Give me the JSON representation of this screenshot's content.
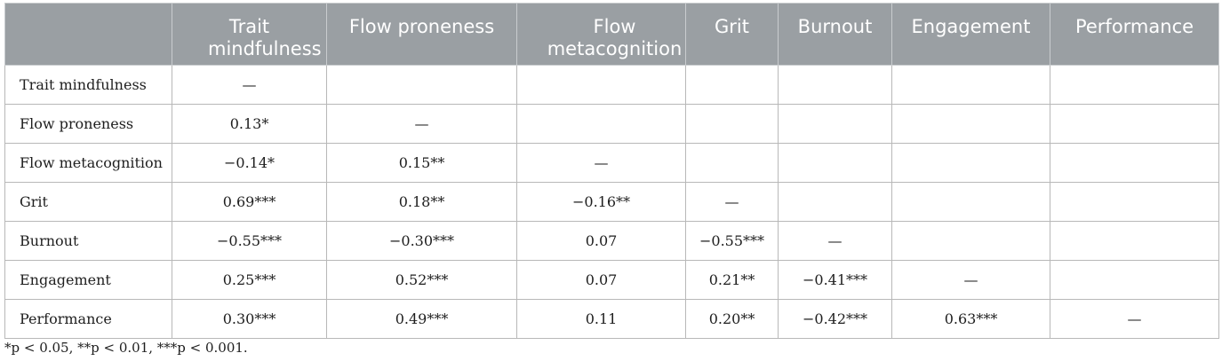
{
  "table": {
    "headers": [
      "",
      "Trait mindfulness",
      "Flow proneness",
      "Flow metacognition",
      "Grit",
      "Burnout",
      "Engagement",
      "Performance"
    ],
    "rows": [
      {
        "label": "Trait mindfulness",
        "cells": [
          "—",
          "",
          "",
          "",
          "",
          "",
          ""
        ]
      },
      {
        "label": "Flow proneness",
        "cells": [
          "0.13*",
          "—",
          "",
          "",
          "",
          "",
          ""
        ]
      },
      {
        "label": "Flow metacognition",
        "cells": [
          "−0.14*",
          "0.15**",
          "—",
          "",
          "",
          "",
          ""
        ]
      },
      {
        "label": "Grit",
        "cells": [
          "0.69***",
          "0.18**",
          "−0.16**",
          "—",
          "",
          "",
          ""
        ]
      },
      {
        "label": "Burnout",
        "cells": [
          "−0.55***",
          "−0.30***",
          "0.07",
          "−0.55***",
          "—",
          "",
          ""
        ]
      },
      {
        "label": "Engagement",
        "cells": [
          "0.25***",
          "0.52***",
          "0.07",
          "0.21**",
          "−0.41***",
          "—",
          ""
        ]
      },
      {
        "label": "Performance",
        "cells": [
          "0.30***",
          "0.49***",
          "0.11",
          "0.20**",
          "−0.42***",
          "0.63***",
          "—"
        ]
      }
    ]
  },
  "footnote": "*p < 0.05, **p < 0.01, ***p < 0.001.",
  "colors": {
    "header_bg": "#9a9fa3",
    "header_text": "#ffffff",
    "grid": "#b8b8b8"
  }
}
